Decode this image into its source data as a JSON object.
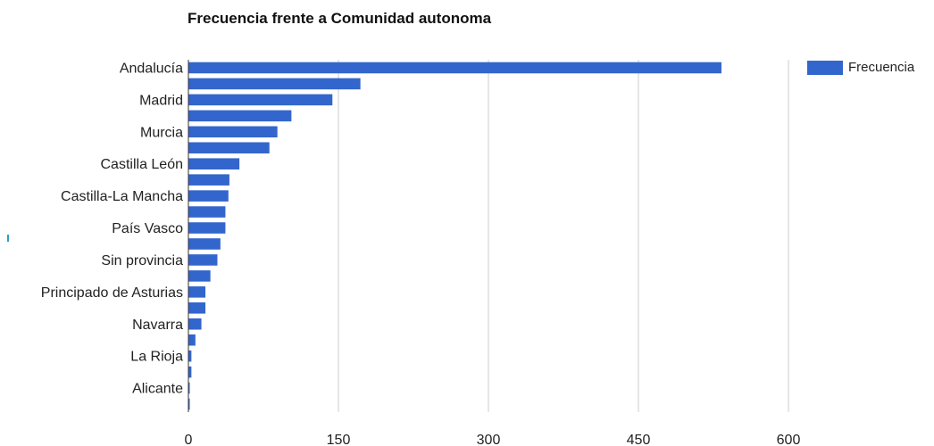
{
  "chart_data": {
    "type": "bar",
    "orientation": "horizontal",
    "title": "Frecuencia frente a Comunidad autonoma",
    "xlabel": "",
    "ylabel": "",
    "xlim": [
      0,
      600
    ],
    "xticks": [
      "0",
      "150",
      "300",
      "450",
      "600"
    ],
    "grid": true,
    "legend_position": "top-right",
    "categories": [
      "Andalucía",
      "",
      "Madrid",
      "",
      "Murcia",
      "",
      "Castilla León",
      "",
      "Castilla-La Mancha",
      "",
      "País Vasco",
      "",
      "Sin provincia",
      "",
      "Principado de Asturias",
      "",
      "Navarra",
      "",
      "La Rioja",
      "",
      "Alicante",
      ""
    ],
    "series": [
      {
        "name": "Frecuencia",
        "color": "#3366cc",
        "values": [
          533,
          172,
          144,
          103,
          89,
          81,
          51,
          41,
          40,
          37,
          37,
          32,
          29,
          22,
          17,
          17,
          13,
          7,
          3,
          3,
          1,
          1
        ]
      }
    ]
  }
}
